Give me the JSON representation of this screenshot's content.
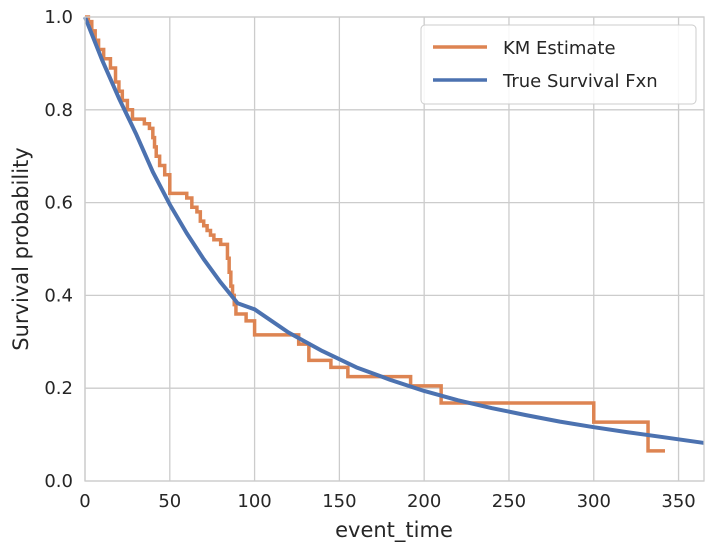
{
  "chart_data": {
    "type": "line",
    "title": "",
    "xlabel": "event_time",
    "ylabel": "Survival probability",
    "xlim": [
      0,
      365
    ],
    "ylim": [
      0.0,
      1.0
    ],
    "xticks": [
      0,
      50,
      100,
      150,
      200,
      250,
      300,
      350
    ],
    "xtick_labels": [
      "0",
      "50",
      "100",
      "150",
      "200",
      "250",
      "300",
      "350"
    ],
    "yticks": [
      0.0,
      0.2,
      0.4,
      0.6,
      0.8,
      1.0
    ],
    "ytick_labels": [
      "0.0",
      "0.2",
      "0.4",
      "0.6",
      "0.8",
      "1.0"
    ],
    "grid": true,
    "legend_position": "top-right",
    "series": [
      {
        "name": "KM Estimate",
        "color": "#dd8452",
        "step": true,
        "x": [
          0,
          2,
          4,
          6,
          8,
          11,
          15,
          18,
          20,
          22,
          25,
          28,
          35,
          38,
          40,
          41,
          42,
          44,
          47,
          50,
          60,
          63,
          66,
          68,
          70,
          72,
          74,
          76,
          80,
          84,
          85,
          86,
          87,
          88,
          89,
          91,
          95,
          100,
          122,
          126,
          132,
          145,
          155,
          192,
          210,
          298,
          300,
          330,
          332,
          342
        ],
        "y": [
          1.0,
          0.99,
          0.97,
          0.95,
          0.93,
          0.91,
          0.89,
          0.86,
          0.84,
          0.82,
          0.8,
          0.78,
          0.77,
          0.76,
          0.74,
          0.72,
          0.7,
          0.68,
          0.66,
          0.62,
          0.61,
          0.59,
          0.58,
          0.56,
          0.55,
          0.54,
          0.53,
          0.52,
          0.51,
          0.48,
          0.45,
          0.42,
          0.4,
          0.38,
          0.36,
          0.36,
          0.345,
          0.315,
          0.315,
          0.295,
          0.26,
          0.245,
          0.225,
          0.205,
          0.168,
          0.168,
          0.127,
          0.127,
          0.065,
          0.065
        ]
      },
      {
        "name": "True Survival Fxn",
        "color": "#4c72b0",
        "step": false,
        "x": [
          0,
          10,
          20,
          30,
          40,
          50,
          60,
          70,
          80,
          90,
          100,
          120,
          140,
          160,
          180,
          200,
          220,
          240,
          260,
          280,
          300,
          320,
          340,
          365
        ],
        "y": [
          1.0,
          0.908,
          0.825,
          0.749,
          0.666,
          0.596,
          0.534,
          0.478,
          0.428,
          0.383,
          0.37,
          0.32,
          0.28,
          0.245,
          0.218,
          0.194,
          0.174,
          0.157,
          0.142,
          0.128,
          0.116,
          0.105,
          0.095,
          0.082
        ]
      }
    ]
  }
}
